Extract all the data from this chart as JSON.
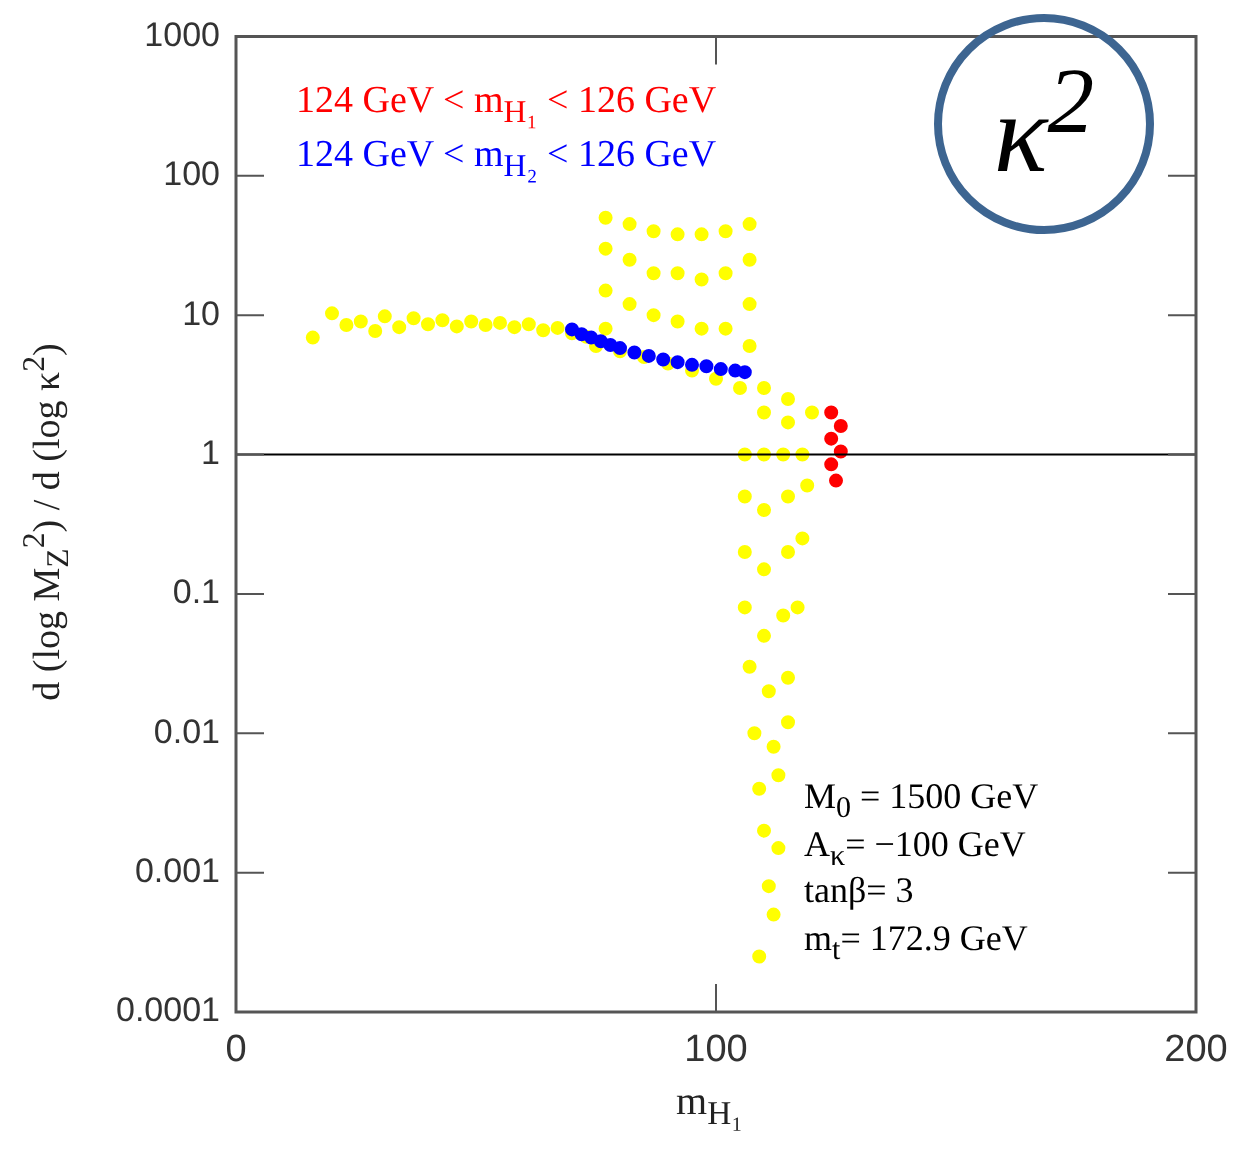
{
  "chart_data": {
    "type": "scatter",
    "xlabel": "m$_{H₁}$",
    "ylabel": "d (log M$_{Z}$$^{2}$) / d (log κ$^{2}$)",
    "log": "y",
    "marker": "circle",
    "legend": "top left",
    "xlim": [
      0,
      200
    ],
    "xticks": [
      0,
      100,
      200
    ],
    "ylim": [
      0.0001,
      1000
    ],
    "yticks": [
      0.0001,
      0.001,
      0.01,
      0.1,
      1,
      10,
      100,
      1000
    ],
    "ref_lines": [
      {
        "axis": "y",
        "value": 1,
        "color": "#000000"
      }
    ],
    "annotations": [
      "κ$^{2}$",
      "M$_{0}$ = 1500 GeV",
      "A$_{κ}$= −100 GeV",
      "tanβ= 3",
      "m$_{t}$= 172.9 GeV"
    ],
    "series": [
      {
        "color": "#ffff00",
        "x": [
          16,
          20,
          23,
          26,
          29,
          31,
          34,
          37,
          40,
          43,
          46,
          49,
          52,
          55,
          58,
          61,
          64,
          67,
          70,
          73,
          77,
          77,
          77,
          77,
          82,
          82,
          82,
          87,
          87,
          87,
          92,
          92,
          92,
          97,
          97,
          97,
          102,
          102,
          102,
          107,
          107,
          107,
          107,
          75,
          80,
          85,
          90,
          95,
          100,
          105,
          110,
          115,
          120,
          110,
          115,
          106,
          110,
          114,
          118,
          106,
          110,
          115,
          119,
          106,
          110,
          115,
          118,
          106,
          110,
          114,
          117,
          107,
          111,
          115,
          108,
          112,
          115,
          109,
          113,
          110,
          113,
          111,
          112,
          109
        ],
        "values": [
          6.9,
          10.3,
          8.5,
          9,
          7.7,
          9.8,
          8.2,
          9.5,
          8.6,
          9.2,
          8.3,
          9,
          8.5,
          8.8,
          8.2,
          8.6,
          7.8,
          8.1,
          7.4,
          7,
          50,
          30,
          15,
          8,
          45,
          25,
          12,
          40,
          20,
          10,
          38,
          20,
          9,
          38,
          18,
          8,
          40,
          20,
          8,
          45,
          25,
          12,
          6,
          6,
          5.5,
          5,
          4.5,
          4,
          3.5,
          3,
          3,
          2.5,
          2,
          2,
          1.7,
          1,
          1,
          1,
          1,
          0.5,
          0.4,
          0.5,
          0.6,
          0.2,
          0.15,
          0.2,
          0.25,
          0.08,
          0.05,
          0.07,
          0.08,
          0.03,
          0.02,
          0.025,
          0.01,
          0.008,
          0.012,
          0.004,
          0.005,
          0.002,
          0.0015,
          0.0008,
          0.0005,
          0.00025
        ]
      },
      {
        "name": "124 GeV < m$_{H₁}$ < 126 GeV",
        "color": "#ff0000",
        "x": [
          124,
          126,
          124,
          126,
          124,
          125
        ],
        "values": [
          2,
          1.6,
          1.3,
          1.05,
          0.85,
          0.65
        ]
      },
      {
        "name": "124 GeV < m$_{H₂}$ < 126 GeV",
        "color": "#0000ff",
        "x": [
          70,
          72,
          74,
          76,
          78,
          80,
          83,
          86,
          89,
          92,
          95,
          98,
          101,
          104,
          106
        ],
        "values": [
          7.9,
          7.3,
          6.9,
          6.5,
          6.1,
          5.8,
          5.4,
          5.1,
          4.8,
          4.6,
          4.4,
          4.3,
          4.1,
          4,
          3.9
        ]
      }
    ]
  }
}
